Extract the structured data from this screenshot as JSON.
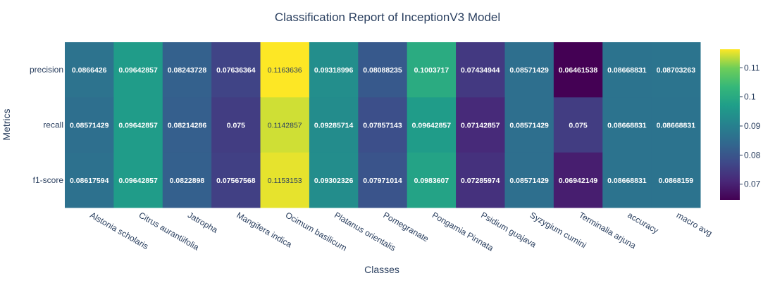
{
  "chart_data": {
    "type": "heatmap",
    "title": "Classification Report of InceptionV3 Model",
    "xlabel": "Classes",
    "ylabel": "Metrics",
    "x": [
      "Alstonia scholaris",
      "Citrus aurantiifolia",
      "Jatropha",
      "Mangifera indica",
      "Ocimum basilicum",
      "Platanus orientalis",
      "Pomegranate",
      "Pongamia Pinnata",
      "Psidium guajava",
      "Syzygium cumini",
      "Terminalia arjuna",
      "accuracy",
      "macro avg"
    ],
    "y": [
      "precision",
      "recall",
      "f1-score"
    ],
    "z": [
      [
        0.0866426,
        0.09642857,
        0.08243728,
        0.07636364,
        0.1163636,
        0.09318996,
        0.08088235,
        0.1003717,
        0.07434944,
        0.08571429,
        0.06461538,
        0.08668831,
        0.08703263
      ],
      [
        0.08571429,
        0.09642857,
        0.08214286,
        0.075,
        0.1142857,
        0.09285714,
        0.07857143,
        0.09642857,
        0.07142857,
        0.08571429,
        0.075,
        0.08668831,
        0.08668831
      ],
      [
        0.08617594,
        0.09642857,
        0.0822898,
        0.07567568,
        0.1153153,
        0.09302326,
        0.07971014,
        0.0983607,
        0.07285974,
        0.08571429,
        0.06942149,
        0.08668831,
        0.0868159
      ]
    ],
    "cell_labels": [
      [
        "0.0866426",
        "0.09642857",
        "0.08243728",
        "0.07636364",
        "0.1163636",
        "0.09318996",
        "0.08088235",
        "0.1003717",
        "0.07434944",
        "0.08571429",
        "0.06461538",
        "0.08668831",
        "0.08703263"
      ],
      [
        "0.08571429",
        "0.09642857",
        "0.08214286",
        "0.075",
        "0.1142857",
        "0.09285714",
        "0.07857143",
        "0.09642857",
        "0.07142857",
        "0.08571429",
        "0.075",
        "0.08668831",
        "0.08668831"
      ],
      [
        "0.08617594",
        "0.09642857",
        "0.0822898",
        "0.07567568",
        "0.1153153",
        "0.09302326",
        "0.07971014",
        "0.0983607",
        "0.07285974",
        "0.08571429",
        "0.06942149",
        "0.08668831",
        "0.0868159"
      ]
    ],
    "colorscale": "viridis",
    "zmin": 0.06461538,
    "zmax": 0.1163636,
    "colorbar": {
      "ticks": [
        0.07,
        0.08,
        0.09,
        0.1,
        0.11
      ],
      "tick_labels": [
        "0.07",
        "0.08",
        "0.09",
        "0.1",
        "0.11"
      ]
    },
    "legend": "right",
    "grid": false
  }
}
